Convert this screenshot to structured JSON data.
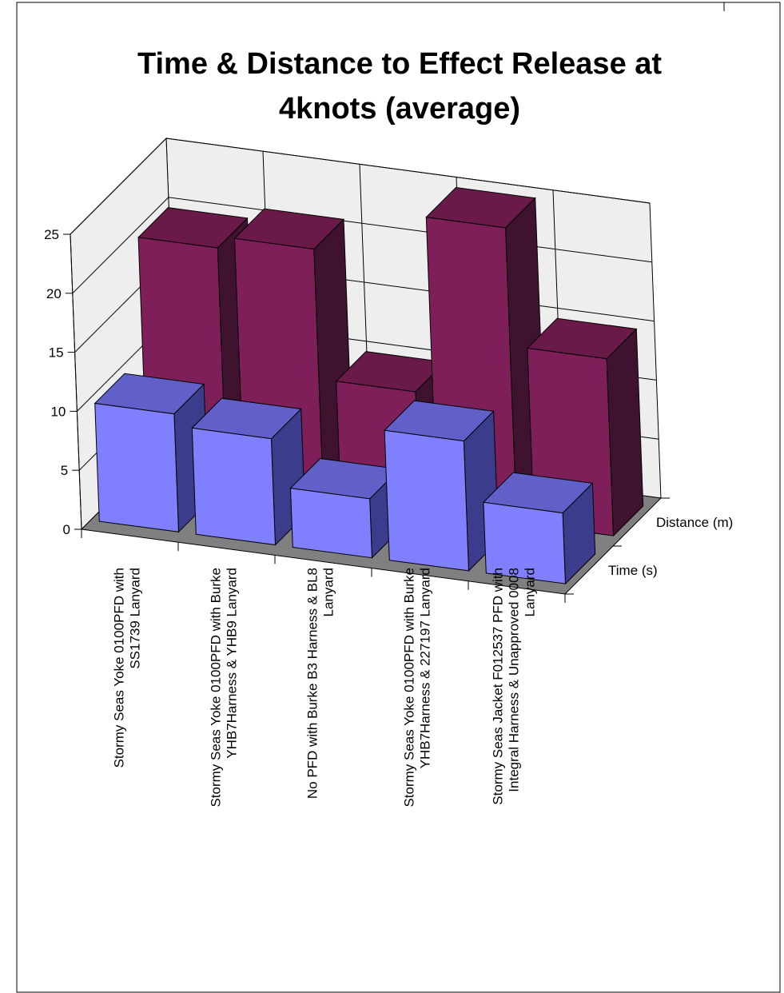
{
  "chart_data": {
    "type": "bar",
    "title_lines": [
      "Time & Distance to Effect Release at",
      "4knots (average)"
    ],
    "categories": [
      [
        "Stormy Seas Yoke 0100PFD with",
        "SS1739 Lanyard"
      ],
      [
        "Stormy Seas Yoke 0100PFD with Burke",
        "YHB7Harness & YHB9 Lanyard"
      ],
      [
        "No PFD with Burke B3 Harness & BL8",
        "Lanyard"
      ],
      [
        "Stormy Seas Yoke 0100PFD with  Burke",
        "YHB7Harness & 227197 Lanyard"
      ],
      [
        "Stormy Seas Jacket F012537 PFD with",
        "Integral Harness & Unapproved 0008",
        "Lanyard"
      ]
    ],
    "series": [
      {
        "name": "Time (s)",
        "values": [
          10,
          9,
          5,
          11,
          6
        ]
      },
      {
        "name": "Distance (m)",
        "values": [
          20,
          21,
          10,
          25,
          15
        ]
      }
    ],
    "ylim": [
      0,
      25
    ],
    "yticks": [
      "0",
      "5",
      "10",
      "15",
      "20",
      "25"
    ],
    "grid": true,
    "colors": {
      "time_front": "#8080ff",
      "time_side": "#3c3c8c",
      "time_top": "#6060c8",
      "dist_front": "#7f1f5a",
      "dist_side": "#3f1230",
      "dist_top": "#6a1a48",
      "floor": "#808080",
      "wall": "#eeeeee"
    }
  }
}
